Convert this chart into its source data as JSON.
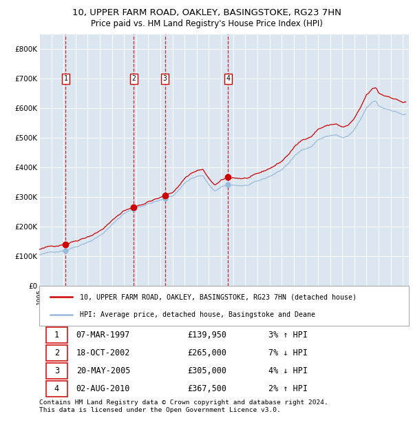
{
  "title": "10, UPPER FARM ROAD, OAKLEY, BASINGSTOKE, RG23 7HN",
  "subtitle": "Price paid vs. HM Land Registry's House Price Index (HPI)",
  "legend_label_red": "10, UPPER FARM ROAD, OAKLEY, BASINGSTOKE, RG23 7HN (detached house)",
  "legend_label_blue": "HPI: Average price, detached house, Basingstoke and Deane",
  "footer": "Contains HM Land Registry data © Crown copyright and database right 2024.\nThis data is licensed under the Open Government Licence v3.0.",
  "table_entries": [
    [
      "1",
      "07-MAR-1997",
      "£139,950",
      "3% ↑ HPI"
    ],
    [
      "2",
      "18-OCT-2002",
      "£265,000",
      "7% ↓ HPI"
    ],
    [
      "3",
      "20-MAY-2005",
      "£305,000",
      "4% ↓ HPI"
    ],
    [
      "4",
      "02-AUG-2010",
      "£367,500",
      "2% ↑ HPI"
    ]
  ],
  "trans_years": [
    1997.18,
    2002.79,
    2005.38,
    2010.58
  ],
  "trans_prices": [
    139950,
    265000,
    305000,
    367500
  ],
  "bg_color": "#dce6f1",
  "grid_color": "#ffffff",
  "red_color": "#cc0000",
  "blue_color": "#99bbdd",
  "ylim": [
    0,
    850000
  ],
  "yticks": [
    0,
    100000,
    200000,
    300000,
    400000,
    500000,
    600000,
    700000,
    800000
  ],
  "xlim_start": 1995.0,
  "xlim_end": 2025.5,
  "hpi_key_years": [
    1995,
    1995.5,
    1996,
    1996.5,
    1997,
    1997.5,
    1998,
    1998.5,
    1999,
    1999.5,
    2000,
    2000.5,
    2001,
    2001.5,
    2002,
    2002.5,
    2003,
    2003.5,
    2004,
    2004.5,
    2005,
    2005.5,
    2006,
    2006.5,
    2007,
    2007.5,
    2008,
    2008.5,
    2009,
    2009.5,
    2010,
    2010.5,
    2011,
    2011.5,
    2012,
    2012.5,
    2013,
    2013.5,
    2014,
    2014.5,
    2015,
    2015.5,
    2016,
    2016.5,
    2017,
    2017.5,
    2018,
    2018.5,
    2019,
    2019.5,
    2020,
    2020.5,
    2021,
    2021.5,
    2022,
    2022.5,
    2022.8,
    2023,
    2023.5,
    2024,
    2024.5,
    2025
  ],
  "hpi_key_vals": [
    105000,
    108000,
    112000,
    117000,
    122000,
    130000,
    138000,
    148000,
    158000,
    168000,
    180000,
    197000,
    215000,
    235000,
    255000,
    265000,
    275000,
    282000,
    290000,
    296000,
    300000,
    307000,
    315000,
    335000,
    360000,
    375000,
    382000,
    385000,
    350000,
    330000,
    340000,
    348000,
    348000,
    347000,
    347000,
    350000,
    355000,
    362000,
    372000,
    383000,
    395000,
    415000,
    438000,
    455000,
    468000,
    478000,
    500000,
    508000,
    513000,
    517000,
    505000,
    510000,
    530000,
    560000,
    600000,
    618000,
    622000,
    605000,
    597000,
    595000,
    588000,
    580000
  ]
}
